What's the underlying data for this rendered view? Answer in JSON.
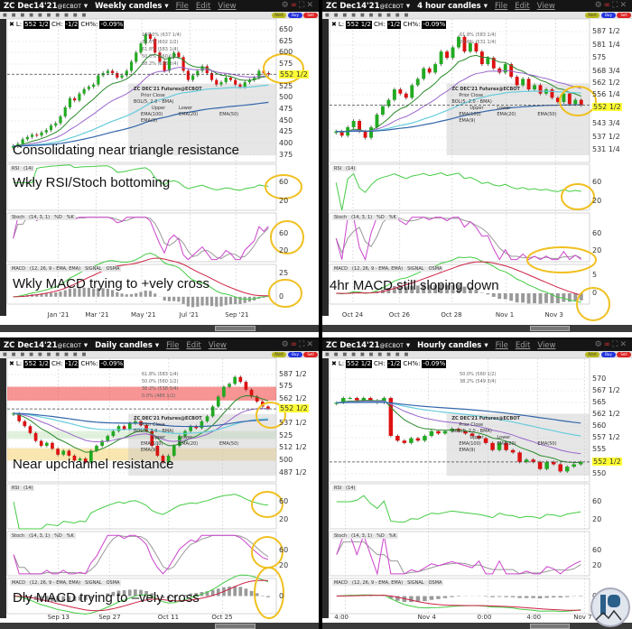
{
  "colors": {
    "up": "#22aa22",
    "down": "#dd1111",
    "highlight": "#f0c020",
    "rsi": "#44cc44",
    "stochK": "#cc44cc",
    "stochD": "#999999",
    "macd": "#44cc44",
    "signal": "#cc2244",
    "osma": "#999999",
    "last_tag": "#ffff33"
  },
  "common": {
    "menu": [
      "File",
      "Edit",
      "View"
    ],
    "buttons": {
      "alert": "Alert",
      "buy": "Buy",
      "sell": "Sell"
    },
    "readout": {
      "l_label": "L:",
      "l_value": "552 1/2",
      "ch_label": "CH:",
      "ch_value": "-1/2",
      "chp_label": "CH%:",
      "chp_value": "-0.09%"
    },
    "legend": {
      "title": "ZC DEC'21 Futures@ECBOT",
      "prior_close": "Prior Close",
      "bol": "BOL(5, 2.0 - BMA)",
      "upper": "Upper",
      "lower": "Lower",
      "ema100": "EMA(100)",
      "ema20": "EMA(20)",
      "ema50": "EMA(50)",
      "ema9": "EMA(9)"
    },
    "rsi": {
      "name": "RSI",
      "params": "(14)"
    },
    "stoch": {
      "name": "Stoch",
      "params": "(14, 3, 1)",
      "d": "%D",
      "k": "%K"
    },
    "macd": {
      "name": "MACD",
      "params": "(12, 26, 9 - EMA, EMA)",
      "signal": "SIGNAL",
      "osma": "OSMA"
    }
  },
  "panels": [
    {
      "symbol": "ZC Dec14'21",
      "exchange": "@ECBOT",
      "timeframe": "Weekly candles",
      "price_ticks": [
        "650",
        "625",
        "600",
        "575",
        "552 1/2",
        "525",
        "500",
        "475",
        "450",
        "425",
        "400",
        "375"
      ],
      "last_price": "552 1/2",
      "last_value": 552.5,
      "fib_labels": [
        "100.0% (637 1/4)",
        "78.6% (602 1/2)",
        "61.8% (583 1/4)",
        "50.0% (560 1/2)",
        "38.2% (538 3/4)"
      ],
      "rsi_ticks": [
        "60",
        "20"
      ],
      "stoch_ticks": [
        "60",
        "20"
      ],
      "macd_ticks": [
        "25",
        "0"
      ],
      "macd_range": [
        -8,
        35
      ],
      "captions": [
        "Consolidating near triangle resistance",
        "Wkly RSI/Stoch bottoming",
        "Wkly MACD trying to +vely cross"
      ],
      "x_labels": [
        "Jan '21",
        "Mar '21",
        "May '21",
        "Jul '21",
        "Sep '21"
      ],
      "closes": [
        395,
        400,
        410,
        415,
        420,
        418,
        425,
        430,
        440,
        445,
        460,
        480,
        500,
        495,
        510,
        520,
        525,
        530,
        550,
        555,
        560,
        555,
        545,
        550,
        560,
        580,
        600,
        620,
        640,
        630,
        600,
        580,
        560,
        590,
        600,
        590,
        560,
        540,
        550,
        560,
        570,
        555,
        540,
        530,
        535,
        545,
        540,
        530,
        525,
        535,
        540,
        545,
        560,
        555,
        552.5
      ]
    },
    {
      "symbol": "ZC Dec14'21",
      "exchange": "@ECBOT",
      "timeframe": "4 hour candles",
      "price_ticks": [
        "587 1/2",
        "581 1/4",
        "575",
        "568 3/4",
        "562 1/2",
        "556 1/4",
        "552 1/2",
        "543 3/4",
        "537 1/2",
        "531 1/4"
      ],
      "last_price": "552 1/2",
      "last_value": 552.5,
      "fib_labels": [
        "61.8% (583 1/4)",
        "23.6% (531 1/4)"
      ],
      "rsi_ticks": [
        "60",
        "20"
      ],
      "stoch_ticks": [
        "60",
        "20"
      ],
      "macd_ticks": [
        "5",
        "0"
      ],
      "macd_range": [
        -3,
        8
      ],
      "captions": [
        "4hr MACD still sloping down"
      ],
      "x_labels": [
        "Oct 24",
        "Oct 26",
        "Oct 28",
        "Nov 1",
        "Nov 3"
      ],
      "closes": [
        540,
        538,
        542,
        545,
        540,
        537,
        542,
        548,
        552,
        555,
        560,
        558,
        556,
        562,
        565,
        570,
        568,
        572,
        578,
        575,
        580,
        585,
        578,
        582,
        578,
        572,
        575,
        570,
        568,
        572,
        566,
        562,
        565,
        560,
        562,
        558,
        560,
        556,
        554,
        558,
        553,
        555,
        552.5
      ]
    },
    {
      "symbol": "ZC Dec14'21",
      "exchange": "@ECBOT",
      "timeframe": "Daily candles",
      "price_ticks": [
        "587 1/2",
        "575",
        "562 1/2",
        "552 1/2",
        "537 1/2",
        "525",
        "512 1/2",
        "500",
        "487 1/2"
      ],
      "last_price": "552 1/2",
      "last_value": 552.5,
      "fib_labels": [
        "61.8% (583 1/4)",
        "50.0% (560 1/2)",
        "38.2% (538 3/4)",
        "0.0% (486 1/2)"
      ],
      "rsi_ticks": [
        "60",
        "20"
      ],
      "stoch_ticks": [
        "60",
        "20"
      ],
      "macd_ticks": [
        "0"
      ],
      "macd_range": [
        -12,
        12
      ],
      "captions": [
        "Near upchannel resistance",
        "Dly MACD trying to –vely cross"
      ],
      "x_labels": [
        "Sep 13",
        "Sep 27",
        "Oct 11",
        "Oct 25"
      ],
      "closes": [
        548,
        540,
        535,
        528,
        520,
        515,
        518,
        512,
        506,
        510,
        505,
        500,
        502,
        498,
        510,
        515,
        520,
        525,
        530,
        535,
        532,
        538,
        540,
        536,
        530,
        515,
        505,
        498,
        505,
        515,
        525,
        530,
        535,
        533,
        540,
        545,
        555,
        565,
        575,
        578,
        585,
        580,
        572,
        565,
        560,
        555,
        552.5
      ]
    },
    {
      "symbol": "ZC Dec14'21",
      "exchange": "@ECBOT",
      "timeframe": "Hourly candles",
      "price_ticks": [
        "570",
        "567 1/2",
        "565",
        "562 1/2",
        "560",
        "557 1/2",
        "555",
        "552 1/2",
        "550"
      ],
      "last_price": "552 1/2",
      "last_value": 552.5,
      "fib_labels": [
        "50.0% (560 1/2)",
        "38.2% (549 3/4)"
      ],
      "rsi_ticks": [
        "60",
        "20"
      ],
      "stoch_ticks": [
        "60",
        "20"
      ],
      "macd_ticks": [
        "0"
      ],
      "macd_range": [
        -3,
        3
      ],
      "captions": [],
      "x_labels": [
        "4:00",
        "Nov 4",
        "0:00",
        "4:00",
        "Nov 7"
      ],
      "closes": [
        565,
        566,
        566,
        565.5,
        566,
        565.5,
        565,
        566,
        558,
        557,
        556.5,
        557.5,
        557,
        558,
        559,
        558.5,
        559,
        559.5,
        559,
        558.5,
        558,
        557.5,
        556.5,
        555,
        556.5,
        555,
        554.5,
        552.5,
        553,
        552.5,
        551,
        552.5,
        552,
        550.5,
        551.5,
        552,
        552.5
      ]
    }
  ]
}
